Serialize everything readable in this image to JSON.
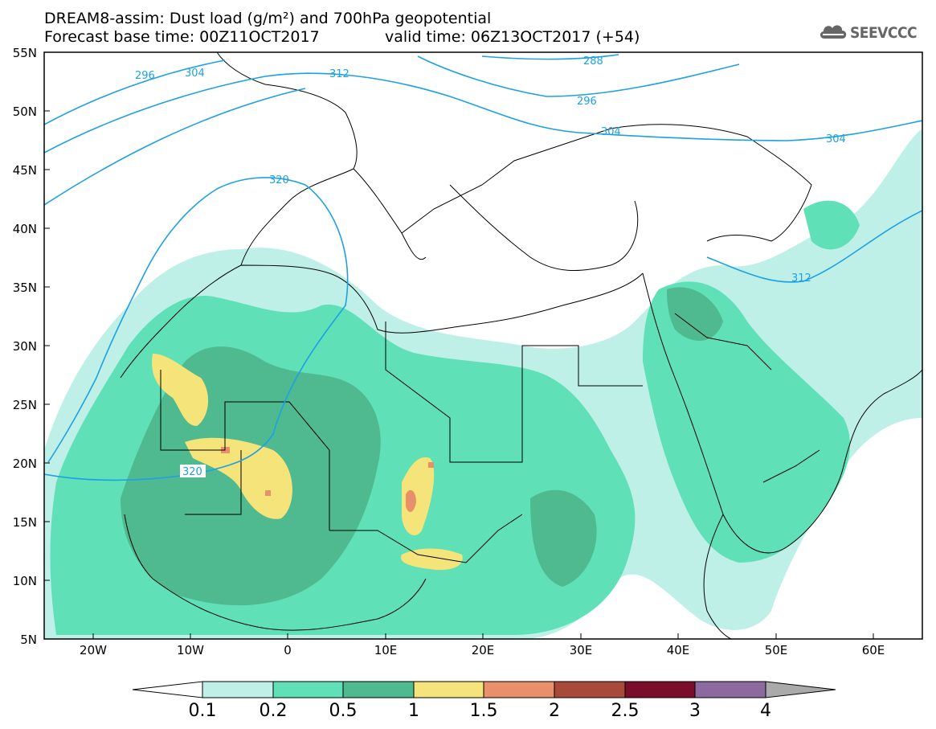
{
  "title": {
    "line1": "DREAM8-assim: Dust load (g/m²) and 700hPa geopotential",
    "line2_base": "Forecast base time: 00Z11OCT2017",
    "line2_valid": "valid time: 06Z13OCT2017 (+54)"
  },
  "logo": {
    "text": "SEEVCCC",
    "icon": "cloud-icon"
  },
  "axes": {
    "lat_labels": [
      "55N",
      "50N",
      "45N",
      "40N",
      "35N",
      "30N",
      "25N",
      "20N",
      "15N",
      "10N",
      "5N"
    ],
    "lon_labels": [
      "20W",
      "10W",
      "0",
      "10E",
      "20E",
      "30E",
      "40E",
      "50E",
      "60E"
    ],
    "lon_range": [
      -25,
      65
    ],
    "lat_range": [
      5,
      55
    ]
  },
  "contours": {
    "labels": [
      "296",
      "304",
      "312",
      "320",
      "288",
      "296",
      "304",
      "304",
      "312",
      "320"
    ],
    "color": "#1ea0e6"
  },
  "colorbar": {
    "levels": [
      "0.1",
      "0.2",
      "0.5",
      "1",
      "1.5",
      "2",
      "2.5",
      "3",
      "4"
    ],
    "colors": [
      "#bff0e8",
      "#5fe0b6",
      "#4fb98f",
      "#f5e47a",
      "#e8906a",
      "#a84a3a",
      "#7a0e2a",
      "#8c6aa0"
    ],
    "under_color": "#ffffff",
    "over_color": "#aaaaaa"
  }
}
